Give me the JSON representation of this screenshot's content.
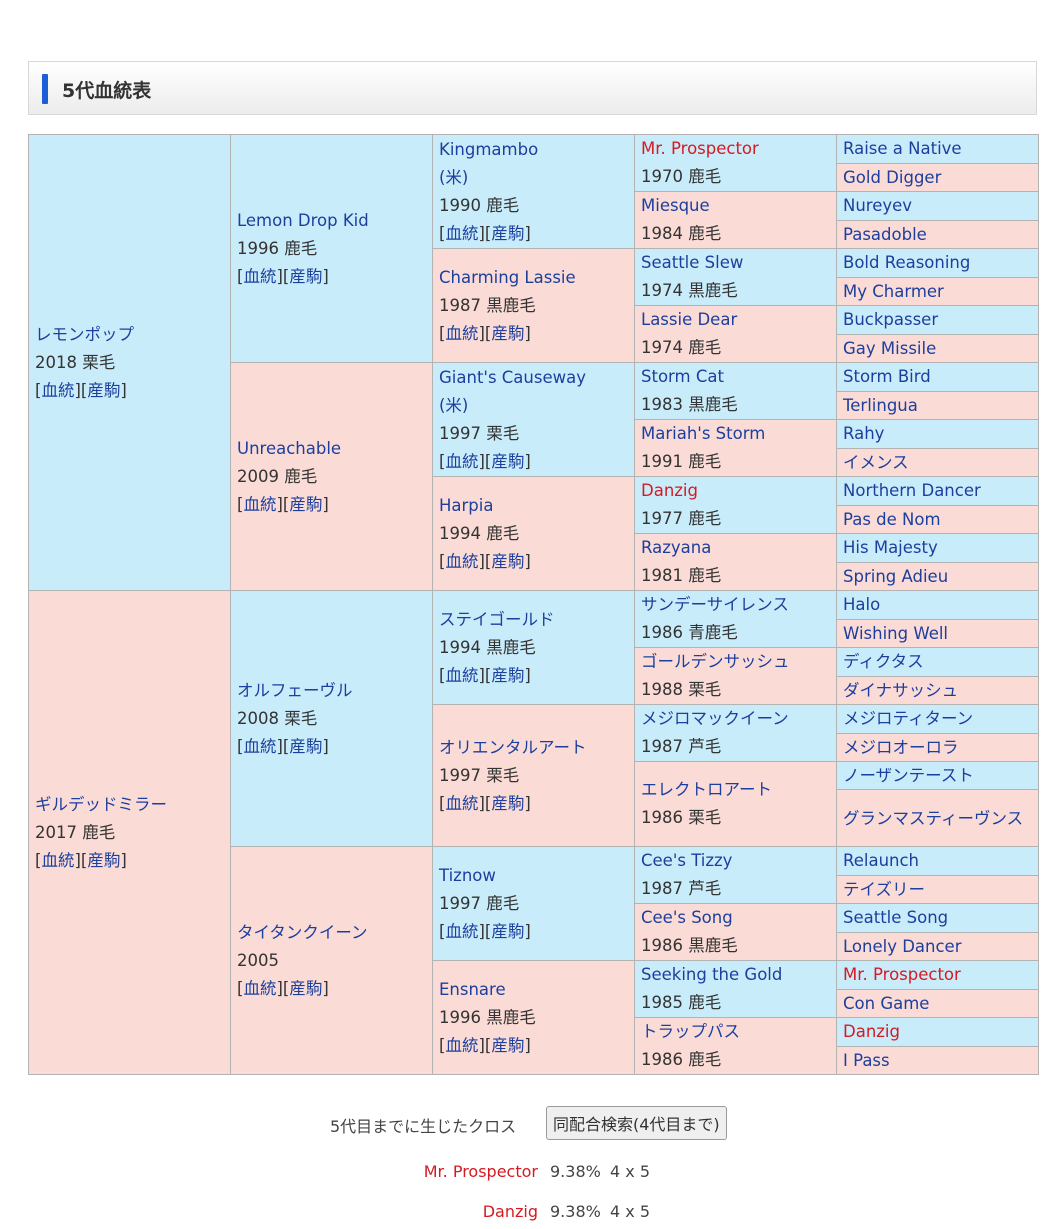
{
  "header": {
    "title": "5代血統表"
  },
  "links": {
    "pedigree": "血統",
    "progeny": "産駒"
  },
  "gens": [
    [
      {
        "name": "レモンポップ",
        "year": "2018",
        "coat": "栗毛"
      },
      {
        "name": "ギルデッドミラー",
        "year": "2017",
        "coat": "鹿毛"
      }
    ],
    [
      {
        "name": "Lemon Drop Kid",
        "year": "1996",
        "coat": "鹿毛"
      },
      {
        "name": "Unreachable",
        "year": "2009",
        "coat": "鹿毛"
      },
      {
        "name": "オルフェーヴル",
        "year": "2008",
        "coat": "栗毛"
      },
      {
        "name": "タイタンクイーン",
        "year": "2005",
        "coat": ""
      }
    ],
    [
      {
        "name": "Kingmambo",
        "origin": "(米)",
        "year": "1990",
        "coat": "鹿毛"
      },
      {
        "name": "Charming Lassie",
        "year": "1987",
        "coat": "黒鹿毛"
      },
      {
        "name": "Giant's Causeway",
        "origin": "(米)",
        "year": "1997",
        "coat": "栗毛"
      },
      {
        "name": "Harpia",
        "year": "1994",
        "coat": "鹿毛"
      },
      {
        "name": "ステイゴールド",
        "year": "1994",
        "coat": "黒鹿毛"
      },
      {
        "name": "オリエンタルアート",
        "year": "1997",
        "coat": "栗毛"
      },
      {
        "name": "Tiznow",
        "year": "1997",
        "coat": "鹿毛"
      },
      {
        "name": "Ensnare",
        "year": "1996",
        "coat": "黒鹿毛"
      }
    ],
    [
      {
        "name": "Mr. Prospector",
        "year": "1970",
        "coat": "鹿毛",
        "red": true
      },
      {
        "name": "Miesque",
        "year": "1984",
        "coat": "鹿毛"
      },
      {
        "name": "Seattle Slew",
        "year": "1974",
        "coat": "黒鹿毛"
      },
      {
        "name": "Lassie Dear",
        "year": "1974",
        "coat": "鹿毛"
      },
      {
        "name": "Storm Cat",
        "year": "1983",
        "coat": "黒鹿毛"
      },
      {
        "name": "Mariah's Storm",
        "year": "1991",
        "coat": "鹿毛"
      },
      {
        "name": "Danzig",
        "year": "1977",
        "coat": "鹿毛",
        "red": true
      },
      {
        "name": "Razyana",
        "year": "1981",
        "coat": "鹿毛"
      },
      {
        "name": "サンデーサイレンス",
        "year": "1986",
        "coat": "青鹿毛"
      },
      {
        "name": "ゴールデンサッシュ",
        "year": "1988",
        "coat": "栗毛"
      },
      {
        "name": "メジロマックイーン",
        "year": "1987",
        "coat": "芦毛"
      },
      {
        "name": "エレクトロアート",
        "year": "1986",
        "coat": "栗毛"
      },
      {
        "name": "Cee's Tizzy",
        "year": "1987",
        "coat": "芦毛"
      },
      {
        "name": "Cee's Song",
        "year": "1986",
        "coat": "黒鹿毛"
      },
      {
        "name": "Seeking the Gold",
        "year": "1985",
        "coat": "鹿毛"
      },
      {
        "name": "トラップパス",
        "year": "1986",
        "coat": "鹿毛"
      }
    ],
    [
      {
        "name": "Raise a Native"
      },
      {
        "name": "Gold Digger"
      },
      {
        "name": "Nureyev"
      },
      {
        "name": "Pasadoble"
      },
      {
        "name": "Bold Reasoning"
      },
      {
        "name": "My Charmer"
      },
      {
        "name": "Buckpasser"
      },
      {
        "name": "Gay Missile"
      },
      {
        "name": "Storm Bird"
      },
      {
        "name": "Terlingua"
      },
      {
        "name": "Rahy"
      },
      {
        "name": "イメンス"
      },
      {
        "name": "Northern Dancer"
      },
      {
        "name": "Pas de Nom"
      },
      {
        "name": "His Majesty"
      },
      {
        "name": "Spring Adieu"
      },
      {
        "name": "Halo"
      },
      {
        "name": "Wishing Well"
      },
      {
        "name": "ディクタス"
      },
      {
        "name": "ダイナサッシュ"
      },
      {
        "name": "メジロティターン"
      },
      {
        "name": "メジロオーロラ"
      },
      {
        "name": "ノーザンテースト"
      },
      {
        "name": "グランマスティーヴンス"
      },
      {
        "name": "Relaunch"
      },
      {
        "name": "テイズリー"
      },
      {
        "name": "Seattle Song"
      },
      {
        "name": "Lonely Dancer"
      },
      {
        "name": "Mr. Prospector",
        "red": true
      },
      {
        "name": "Con Game"
      },
      {
        "name": "Danzig",
        "red": true
      },
      {
        "name": "I Pass"
      }
    ]
  ],
  "cross": {
    "label": "5代目までに生じたクロス",
    "button": "同配合検索(4代目まで)",
    "items": [
      {
        "name": "Mr. Prospector",
        "pct": "9.38%",
        "gen": "4 x 5"
      },
      {
        "name": "Danzig",
        "pct": "9.38%",
        "gen": "4 x 5"
      }
    ]
  }
}
